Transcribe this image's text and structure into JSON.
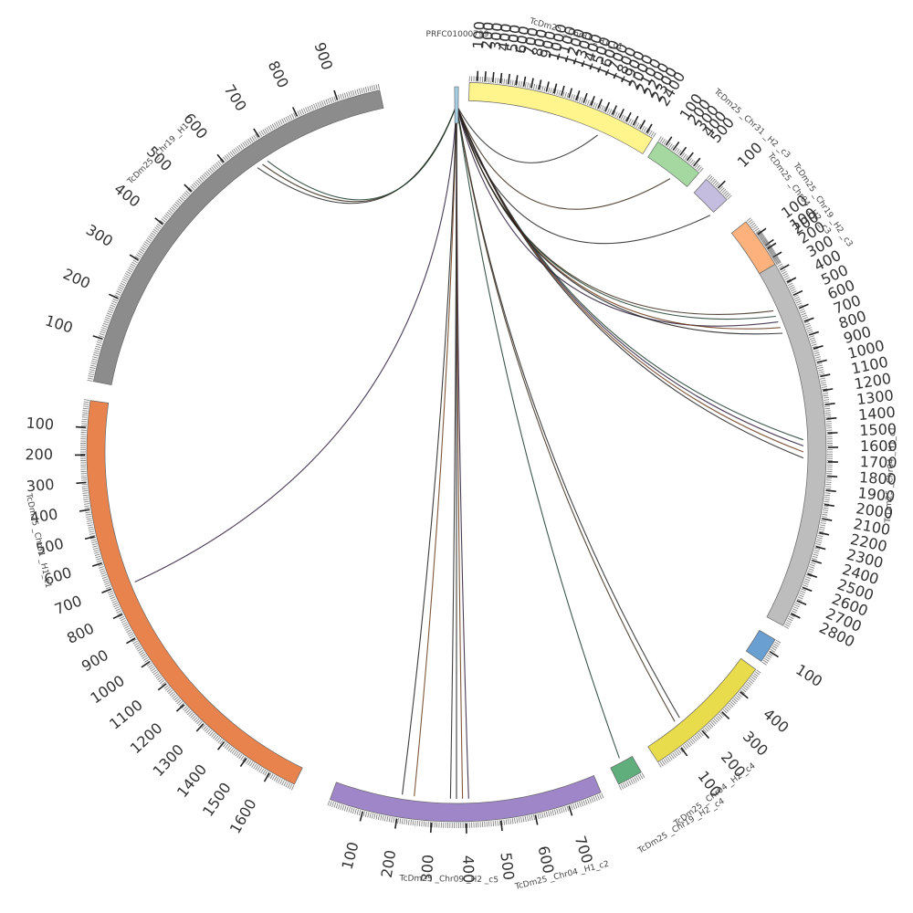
{
  "diagram": {
    "type": "circos",
    "query_label": "PRFC01000799",
    "query_color": "#a6cee3",
    "ideograms": [
      {
        "name": "TcDm25 _Chr19 _H1",
        "color": "#8c8c8c",
        "ticks": [
          100,
          200,
          300,
          400,
          500,
          600,
          700,
          800,
          900
        ]
      },
      {
        "name": "TcDm25 _Chr31 _H1_c1",
        "color": "#e8834e",
        "ticks": [
          100,
          200,
          300,
          400,
          500,
          600,
          700,
          800,
          900,
          1000,
          1100,
          1200,
          1300,
          1400,
          1500,
          1600
        ]
      },
      {
        "name": "TcDm25 _Chr09 _H2 _c5",
        "color": "#9e86c8",
        "ticks": [
          100,
          200,
          300,
          400,
          500,
          600,
          700
        ]
      },
      {
        "name": "TcDm25 _Chr04 _H1_c2",
        "color": "#5fae7c",
        "ticks": []
      },
      {
        "name": "TcDm25 _Chr19 _H2 _c4",
        "color": "#e8dc4c",
        "ticks": [
          100,
          200,
          300,
          400
        ]
      },
      {
        "name": "TcDm25 _Chr04 _H2 _c4",
        "color": "#6a9fd2",
        "ticks": [
          100
        ]
      },
      {
        "name": "TcDm25 _Chr04 _H1_c1",
        "color": "#bdbdbd",
        "ticks": [
          100,
          200,
          300,
          400,
          500,
          600,
          700,
          800,
          900,
          1000,
          1100,
          1200,
          1300,
          1400,
          1500,
          1600,
          1700,
          1800,
          1900,
          2000,
          2100,
          2200,
          2300,
          2400,
          2500,
          2600,
          2700,
          2800
        ]
      },
      {
        "name": "TcDm25 _Chr19 _H2 _c3",
        "color": "#fdb27d",
        "ticks": [
          100,
          200
        ]
      },
      {
        "name": "TcDm25 _Chr04 _H2 _c3",
        "color": "#c4bde0",
        "ticks": [
          100
        ]
      },
      {
        "name": "TcDm25 _Chr31 _H2 _c3",
        "color": "#a4d8a0",
        "ticks": [
          100,
          200,
          300,
          400,
          500
        ]
      },
      {
        "name": "TcDm25 _Chr31 _H1_c1",
        "color": "#fff58c",
        "ticks": [
          100,
          200,
          300,
          400,
          500,
          600,
          700,
          800,
          900,
          1000,
          1100,
          1200,
          1300,
          1400,
          1500,
          1600,
          1700,
          1800,
          1900,
          2000,
          2100,
          2200,
          2300,
          2400
        ]
      }
    ]
  }
}
